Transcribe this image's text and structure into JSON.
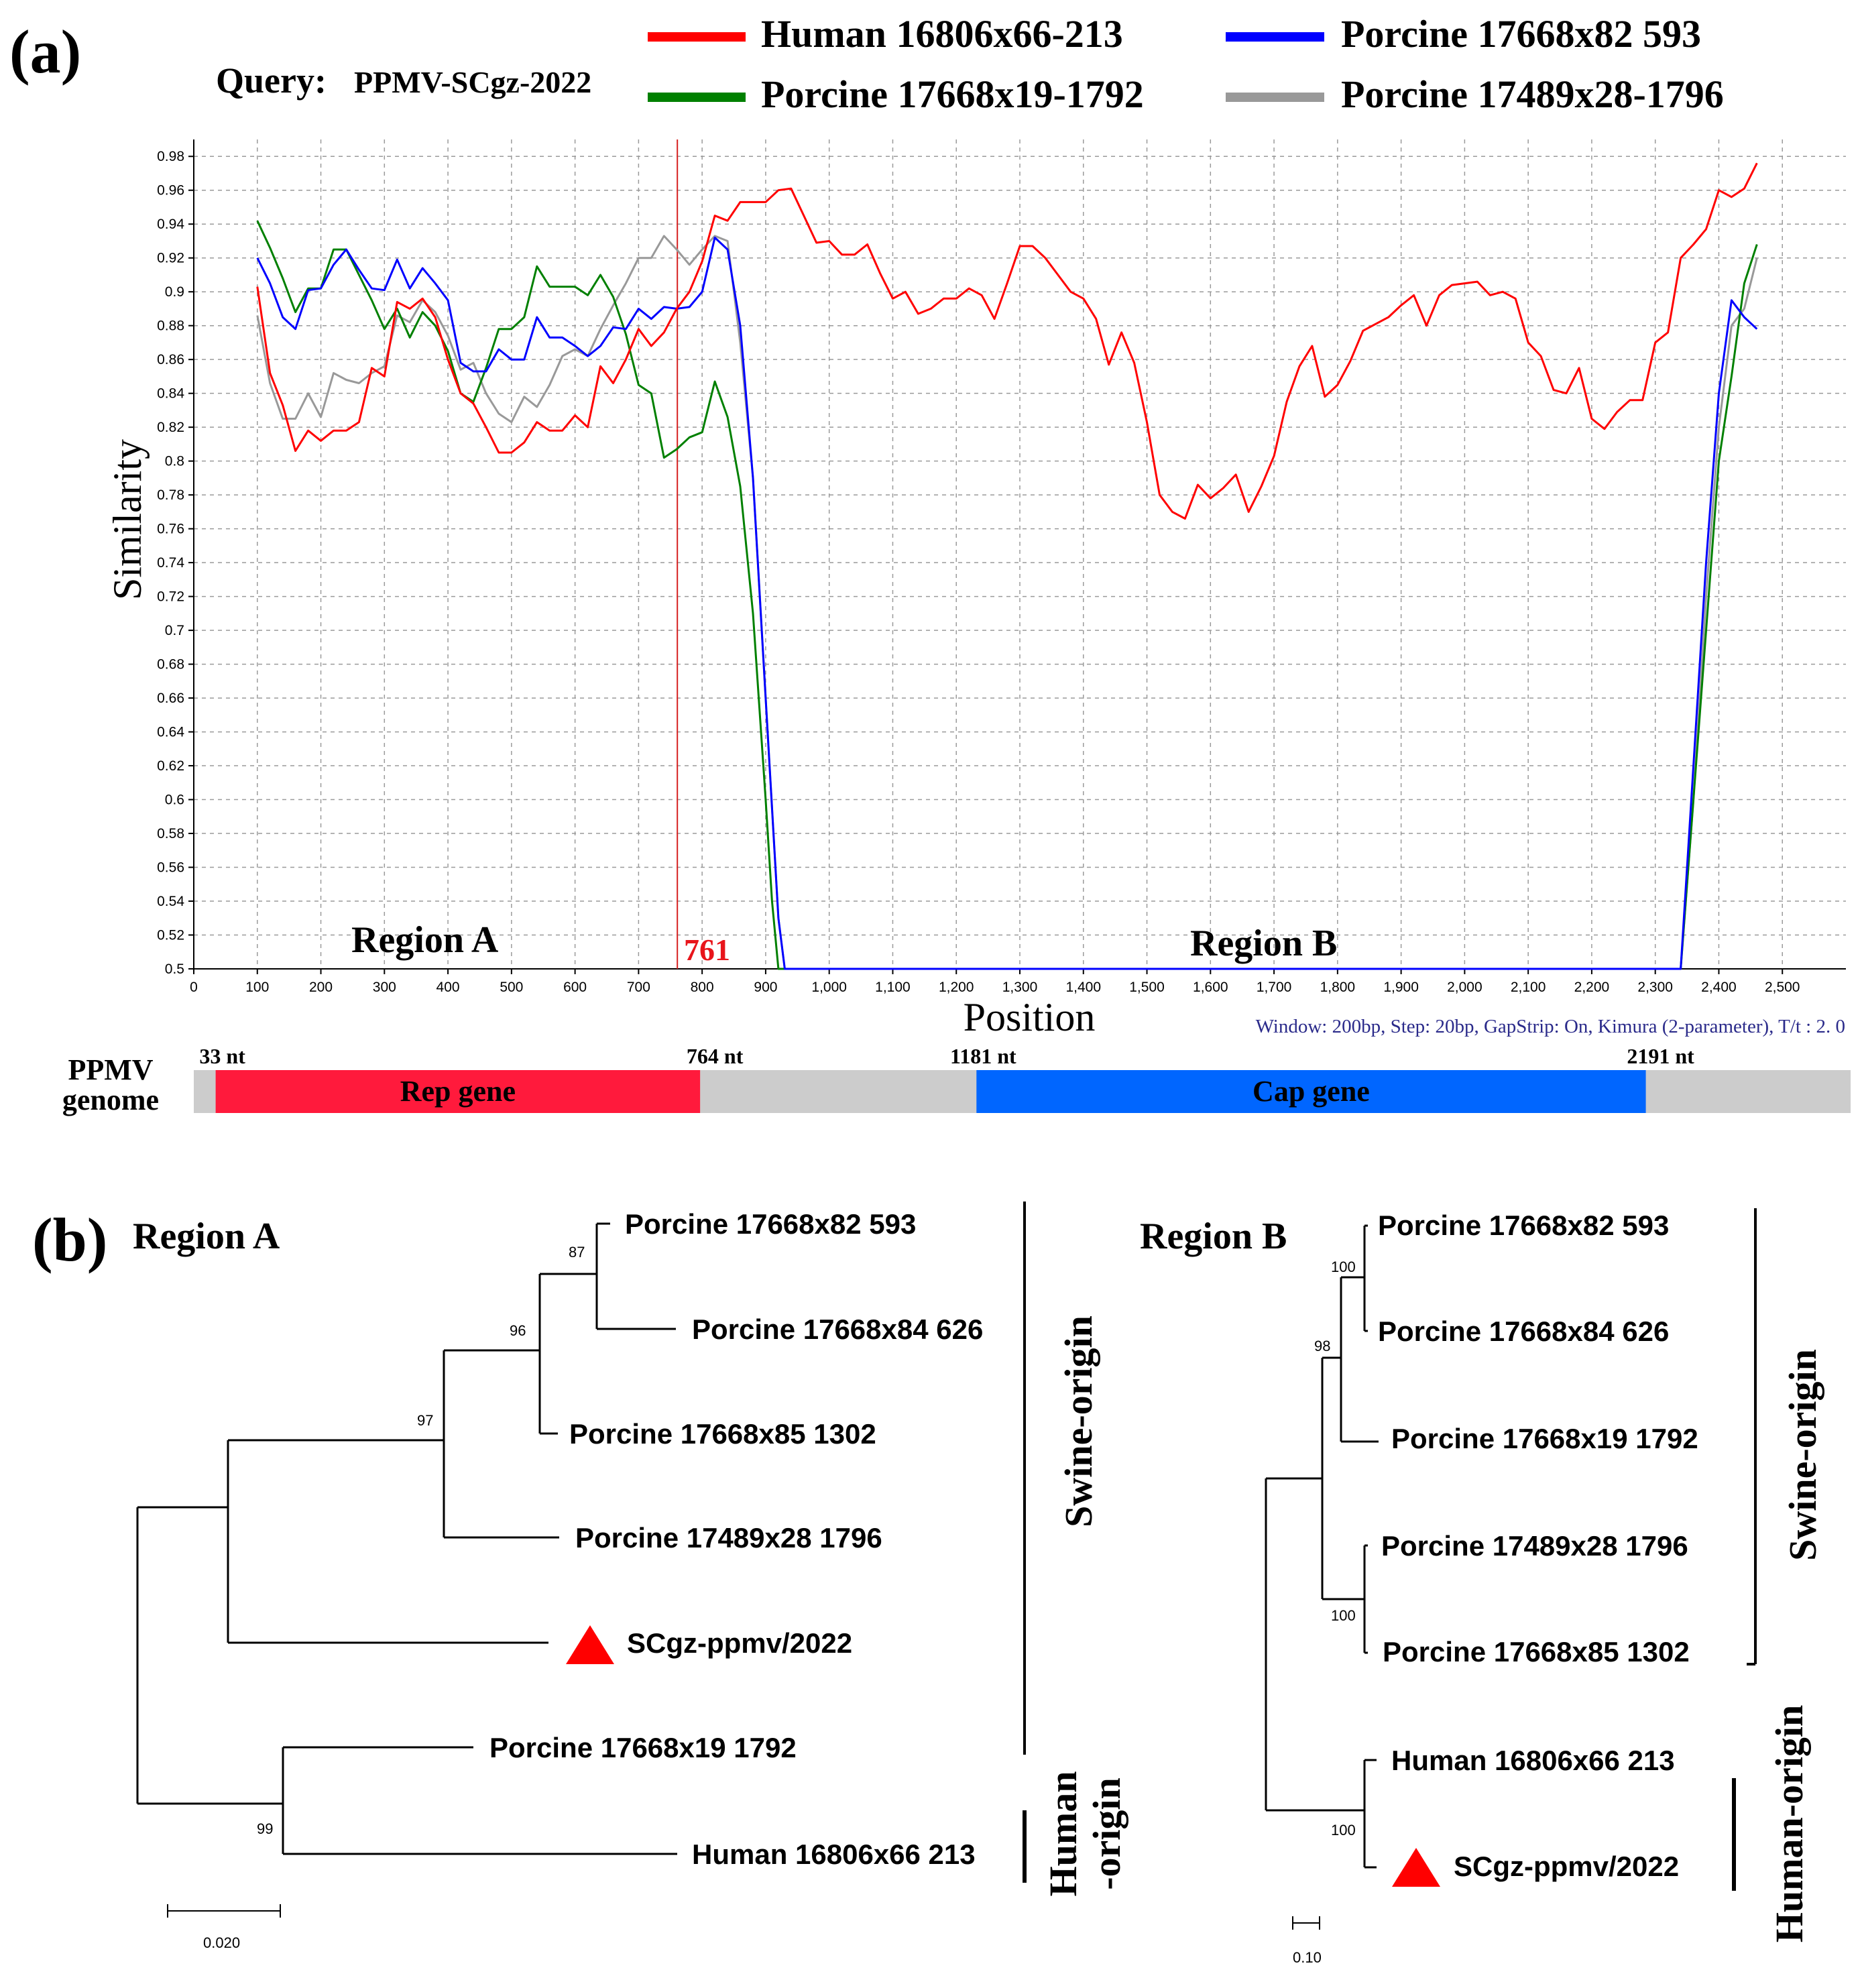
{
  "panel_a": {
    "panel_label": "(a)",
    "query_prefix": "Query:",
    "query_name": "PPMV-SCgz-2022",
    "breakpoint_label": "761",
    "region_a_label": "Region A",
    "region_b_label": "Region B",
    "settings_note": "Window: 200bp, Step: 20bp, GapStrip: On, Kimura (2-parameter), T/t : 2. 0",
    "genome_label_line1": "PPMV",
    "genome_label_line2": "genome",
    "genome_length": 2500,
    "genes": [
      {
        "name": "Rep gene",
        "start": 33,
        "end": 764,
        "color": "#ff1a3c",
        "start_label": "33 nt",
        "end_label": "764 nt"
      },
      {
        "name": "Cap gene",
        "start": 1181,
        "end": 2191,
        "color": "#0066ff",
        "start_label": "1181 nt",
        "end_label": "2191 nt"
      }
    ],
    "genome_backbone_color": "#cccccc"
  },
  "chart_data": {
    "type": "line",
    "title": "",
    "xlabel": "Position",
    "ylabel": "Similarity",
    "xlim": [
      0,
      2600
    ],
    "ylim": [
      0.5,
      0.99
    ],
    "grid": true,
    "legend_position": "top",
    "breakpoint_x": 761,
    "xticks": [
      0,
      100,
      200,
      300,
      400,
      500,
      600,
      700,
      800,
      900,
      1000,
      1100,
      1200,
      1300,
      1400,
      1500,
      1600,
      1700,
      1800,
      1900,
      2000,
      2100,
      2200,
      2300,
      2400,
      2500
    ],
    "xtick_labels": [
      "0",
      "100",
      "200",
      "300",
      "400",
      "500",
      "600",
      "700",
      "800",
      "900",
      "1,000",
      "1,100",
      "1,200",
      "1,300",
      "1,400",
      "1,500",
      "1,600",
      "1,700",
      "1,800",
      "1,900",
      "2,000",
      "2,100",
      "2,200",
      "2,300",
      "2,400",
      "2,500"
    ],
    "yticks": [
      0.5,
      0.52,
      0.54,
      0.56,
      0.58,
      0.6,
      0.62,
      0.64,
      0.66,
      0.68,
      0.7,
      0.72,
      0.74,
      0.76,
      0.78,
      0.8,
      0.82,
      0.84,
      0.86,
      0.88,
      0.9,
      0.92,
      0.94,
      0.96,
      0.98
    ],
    "ytick_labels": [
      "0.5",
      "0.52",
      "0.54",
      "0.56",
      "0.58",
      "0.6",
      "0.62",
      "0.64",
      "0.66",
      "0.68",
      "0.7",
      "0.72",
      "0.74",
      "0.76",
      "0.78",
      "0.8",
      "0.82",
      "0.84",
      "0.86",
      "0.88",
      "0.9",
      "0.92",
      "0.94",
      "0.96",
      "0.98"
    ],
    "series": [
      {
        "name": "Human 16806x66-213",
        "color": "#ff0000",
        "x": [
          100,
          120,
          140,
          160,
          180,
          200,
          220,
          240,
          260,
          280,
          300,
          320,
          340,
          360,
          380,
          400,
          420,
          440,
          460,
          480,
          500,
          520,
          540,
          560,
          580,
          600,
          620,
          640,
          660,
          680,
          700,
          720,
          740,
          760,
          780,
          800,
          820,
          840,
          860,
          880,
          900,
          920,
          940,
          960,
          980,
          1000,
          1020,
          1040,
          1060,
          1080,
          1100,
          1120,
          1140,
          1160,
          1180,
          1200,
          1220,
          1240,
          1260,
          1280,
          1300,
          1320,
          1340,
          1360,
          1380,
          1400,
          1420,
          1440,
          1460,
          1480,
          1500,
          1520,
          1540,
          1560,
          1580,
          1600,
          1620,
          1640,
          1660,
          1680,
          1700,
          1720,
          1740,
          1760,
          1780,
          1800,
          1820,
          1840,
          1860,
          1880,
          1900,
          1920,
          1940,
          1960,
          1980,
          2000,
          2020,
          2040,
          2060,
          2080,
          2100,
          2120,
          2140,
          2160,
          2180,
          2200,
          2220,
          2240,
          2260,
          2280,
          2300,
          2320,
          2340,
          2360,
          2380,
          2400,
          2420,
          2440,
          2460
        ],
        "y": [
          0.903,
          0.852,
          0.833,
          0.806,
          0.818,
          0.812,
          0.818,
          0.818,
          0.823,
          0.855,
          0.85,
          0.894,
          0.89,
          0.896,
          0.885,
          0.86,
          0.84,
          0.834,
          0.82,
          0.805,
          0.805,
          0.811,
          0.823,
          0.818,
          0.818,
          0.827,
          0.82,
          0.856,
          0.846,
          0.86,
          0.878,
          0.868,
          0.876,
          0.89,
          0.9,
          0.918,
          0.945,
          0.942,
          0.953,
          0.953,
          0.953,
          0.96,
          0.961,
          0.945,
          0.929,
          0.93,
          0.922,
          0.922,
          0.928,
          0.911,
          0.896,
          0.9,
          0.887,
          0.89,
          0.896,
          0.896,
          0.902,
          0.898,
          0.884,
          0.905,
          0.927,
          0.927,
          0.92,
          0.91,
          0.9,
          0.896,
          0.884,
          0.857,
          0.876,
          0.858,
          0.823,
          0.78,
          0.77,
          0.766,
          0.786,
          0.778,
          0.784,
          0.792,
          0.77,
          0.785,
          0.803,
          0.835,
          0.856,
          0.868,
          0.838,
          0.845,
          0.859,
          0.877,
          0.881,
          0.885,
          0.892,
          0.898,
          0.88,
          0.898,
          0.904,
          0.905,
          0.906,
          0.898,
          0.9,
          0.896,
          0.87,
          0.862,
          0.842,
          0.84,
          0.855,
          0.825,
          0.819,
          0.829,
          0.836,
          0.836,
          0.87,
          0.876,
          0.92,
          0.928,
          0.937,
          0.96,
          0.956,
          0.961,
          0.976
        ]
      },
      {
        "name": "Porcine 17668x19-1792",
        "color": "#008000",
        "x": [
          100,
          120,
          140,
          160,
          180,
          200,
          220,
          240,
          260,
          280,
          300,
          320,
          340,
          360,
          380,
          400,
          420,
          440,
          460,
          480,
          500,
          520,
          540,
          560,
          580,
          600,
          620,
          640,
          660,
          680,
          700,
          720,
          740,
          760,
          780,
          800,
          820,
          840,
          860,
          880,
          900,
          910,
          920,
          2340,
          2360,
          2380,
          2400,
          2420,
          2440,
          2460
        ],
        "y": [
          0.942,
          0.926,
          0.908,
          0.888,
          0.902,
          0.902,
          0.925,
          0.925,
          0.91,
          0.895,
          0.878,
          0.89,
          0.873,
          0.888,
          0.88,
          0.865,
          0.84,
          0.835,
          0.855,
          0.878,
          0.878,
          0.885,
          0.915,
          0.903,
          0.903,
          0.903,
          0.898,
          0.91,
          0.897,
          0.875,
          0.845,
          0.84,
          0.802,
          0.807,
          0.814,
          0.817,
          0.847,
          0.826,
          0.785,
          0.71,
          0.6,
          0.54,
          0.5,
          0.5,
          0.6,
          0.7,
          0.8,
          0.85,
          0.905,
          0.928
        ]
      },
      {
        "name": "Porcine 17668x82 593",
        "color": "#0000ff",
        "x": [
          100,
          120,
          140,
          160,
          180,
          200,
          220,
          240,
          260,
          280,
          300,
          320,
          340,
          360,
          380,
          400,
          420,
          440,
          460,
          480,
          500,
          520,
          540,
          560,
          580,
          600,
          620,
          640,
          660,
          680,
          700,
          720,
          740,
          760,
          780,
          800,
          820,
          840,
          860,
          880,
          900,
          920,
          930,
          2340,
          2360,
          2380,
          2400,
          2420,
          2440,
          2460
        ],
        "y": [
          0.92,
          0.905,
          0.885,
          0.878,
          0.901,
          0.902,
          0.916,
          0.925,
          0.913,
          0.902,
          0.901,
          0.919,
          0.902,
          0.914,
          0.905,
          0.895,
          0.858,
          0.853,
          0.853,
          0.866,
          0.86,
          0.86,
          0.885,
          0.873,
          0.873,
          0.868,
          0.862,
          0.868,
          0.879,
          0.878,
          0.89,
          0.884,
          0.891,
          0.89,
          0.891,
          0.9,
          0.932,
          0.925,
          0.88,
          0.79,
          0.66,
          0.53,
          0.5,
          0.5,
          0.62,
          0.74,
          0.84,
          0.895,
          0.885,
          0.878
        ]
      },
      {
        "name": "Porcine 17489x28-1796",
        "color": "#999999",
        "x": [
          100,
          120,
          140,
          160,
          180,
          200,
          220,
          240,
          260,
          280,
          300,
          320,
          340,
          360,
          380,
          400,
          420,
          440,
          460,
          480,
          500,
          520,
          540,
          560,
          580,
          600,
          620,
          640,
          660,
          680,
          700,
          720,
          740,
          760,
          780,
          800,
          820,
          840,
          860,
          880,
          900,
          920,
          930,
          2340,
          2360,
          2380,
          2400,
          2420,
          2440,
          2460
        ],
        "y": [
          0.886,
          0.846,
          0.825,
          0.825,
          0.84,
          0.826,
          0.852,
          0.848,
          0.846,
          0.852,
          0.856,
          0.886,
          0.882,
          0.895,
          0.888,
          0.874,
          0.854,
          0.858,
          0.84,
          0.828,
          0.823,
          0.838,
          0.832,
          0.845,
          0.862,
          0.866,
          0.862,
          0.878,
          0.892,
          0.905,
          0.92,
          0.92,
          0.933,
          0.925,
          0.916,
          0.925,
          0.933,
          0.93,
          0.87,
          0.79,
          0.66,
          0.53,
          0.5,
          0.5,
          0.6,
          0.72,
          0.82,
          0.88,
          0.89,
          0.92
        ]
      }
    ]
  },
  "panel_b": {
    "panel_label": "(b)",
    "tree_a": {
      "title": "Region A",
      "scale_value": "0.020",
      "bracket_swine": "Swine-origin",
      "bracket_human_line1": "Human",
      "bracket_human_line2": "-origin",
      "leaves": [
        {
          "label": "Porcine 17668x82 593",
          "query": false
        },
        {
          "label": "Porcine 17668x84 626",
          "query": false
        },
        {
          "label": "Porcine 17668x85 1302",
          "query": false
        },
        {
          "label": "Porcine 17489x28 1796",
          "query": false
        },
        {
          "label": "SCgz-ppmv/2022",
          "query": true
        },
        {
          "label": "Porcine 17668x19 1792",
          "query": false
        },
        {
          "label": "Human 16806x66 213",
          "query": false
        }
      ],
      "bootstraps": [
        "87",
        "96",
        "97",
        "99"
      ]
    },
    "tree_b": {
      "title": "Region B",
      "scale_value": "0.10",
      "bracket_swine": "Swine-origin",
      "bracket_human": "Human-origin",
      "leaves": [
        {
          "label": "Porcine 17668x82 593",
          "query": false
        },
        {
          "label": "Porcine  17668x84 626",
          "query": false
        },
        {
          "label": "Porcine 17668x19 1792",
          "query": false
        },
        {
          "label": "Porcine 17489x28 1796",
          "query": false
        },
        {
          "label": "Porcine 17668x85 1302",
          "query": false
        },
        {
          "label": "Human 16806x66 213",
          "query": false
        },
        {
          "label": "SCgz-ppmv/2022",
          "query": true
        }
      ],
      "bootstraps": [
        "100",
        "98",
        "100",
        "100"
      ]
    },
    "query_marker_color": "#ff0000"
  }
}
